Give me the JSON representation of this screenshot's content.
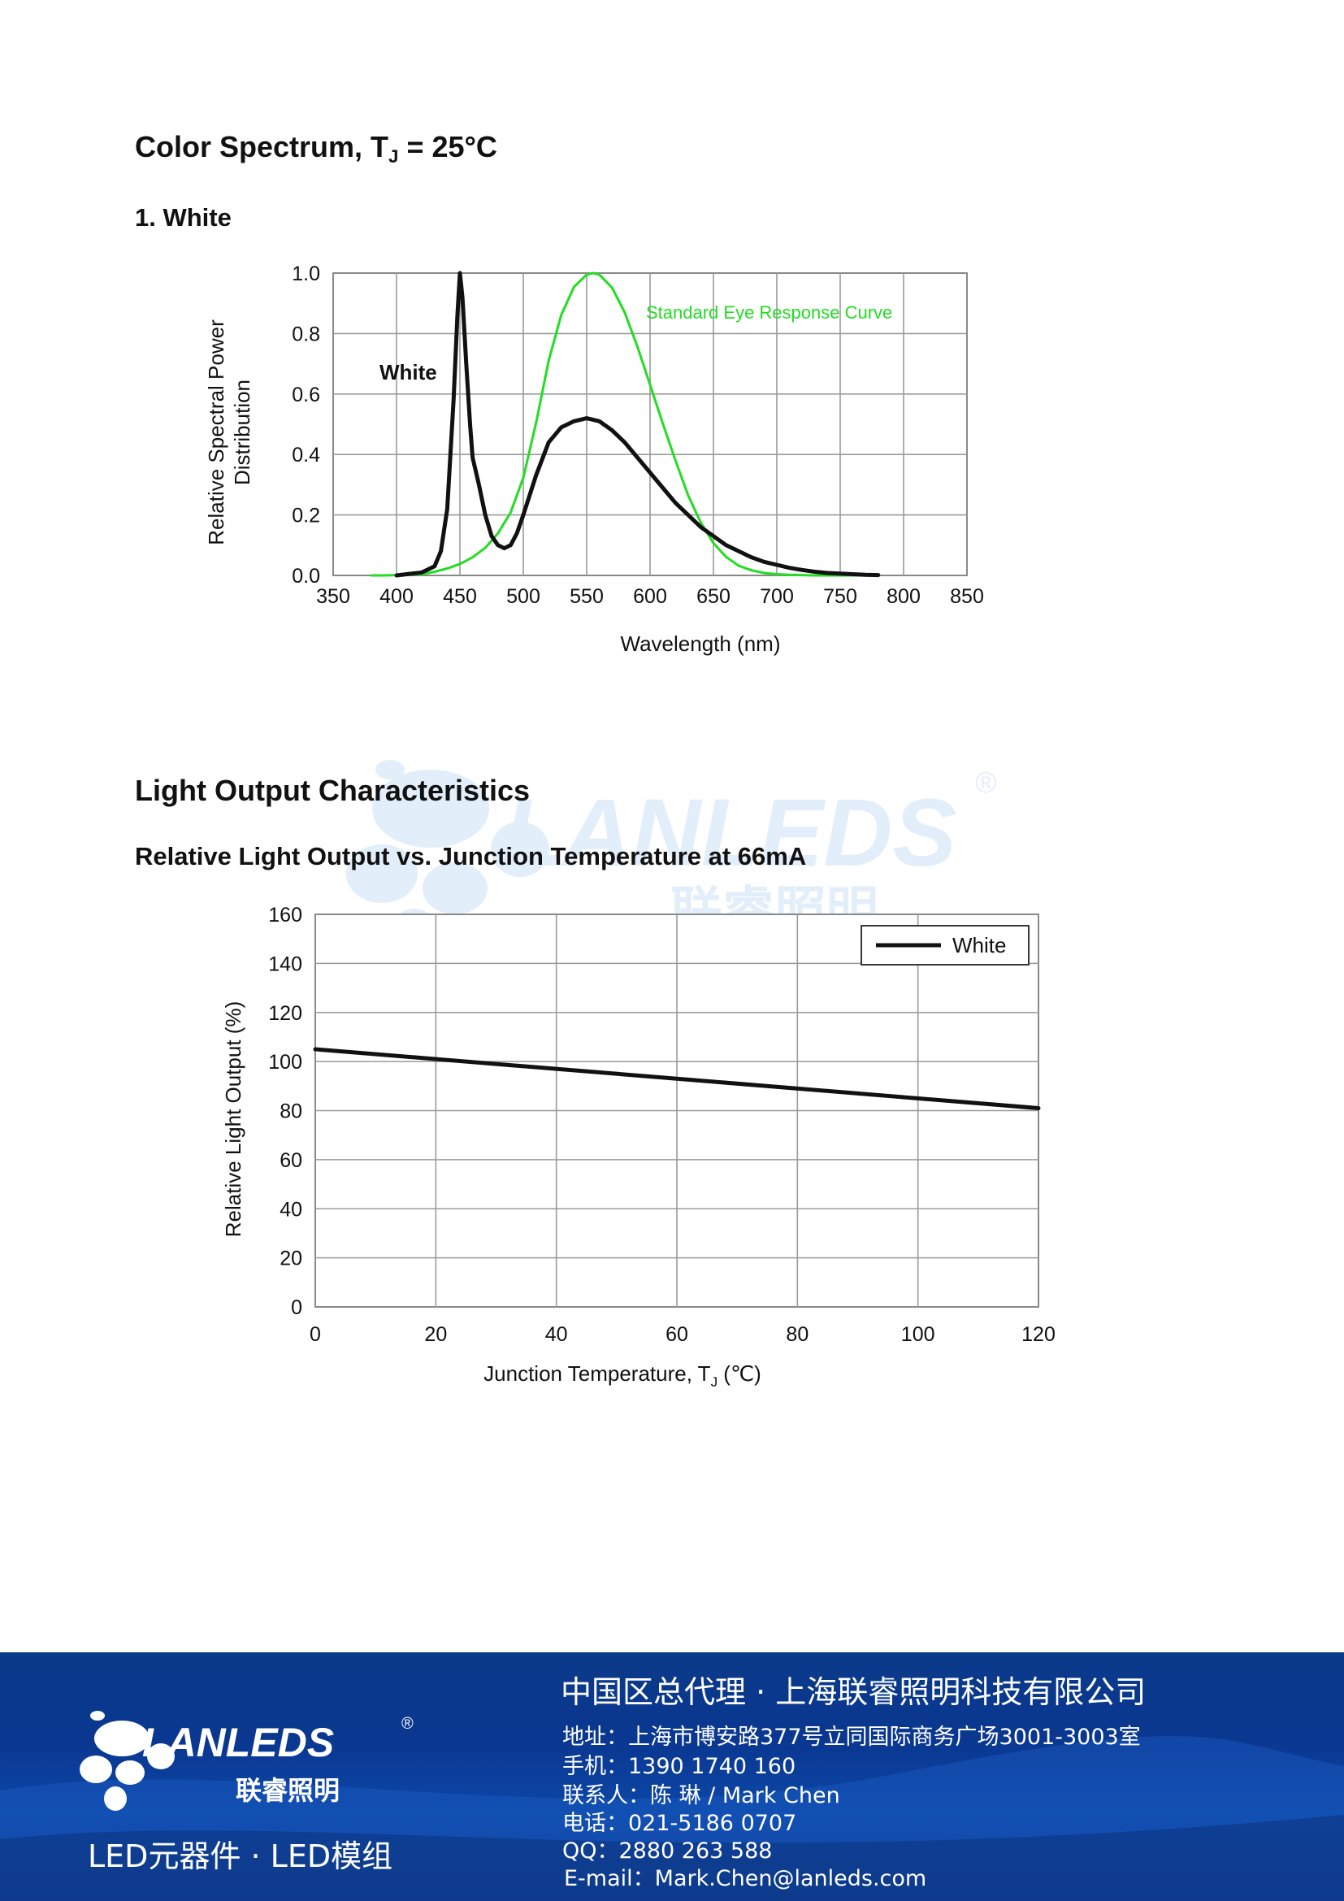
{
  "section1": {
    "title": "Color Spectrum, T",
    "title_sub": "J",
    "title_rest": " = 25°C",
    "subtitle": "1. White"
  },
  "chart_data": [
    {
      "type": "line",
      "ylabel_line1": "Relative Spectral Power",
      "ylabel_line2": "Distribution",
      "xlabel": "Wavelength (nm)",
      "xlim": [
        350,
        850
      ],
      "ylim": [
        0,
        1.0
      ],
      "x_ticks": [
        "350",
        "400",
        "450",
        "500",
        "550",
        "600",
        "650",
        "700",
        "750",
        "800",
        "850"
      ],
      "y_ticks": [
        "0.0",
        "0.2",
        "0.4",
        "0.6",
        "0.8",
        "1.0"
      ],
      "grid": true,
      "annotations": [
        {
          "text": "White",
          "color": "#111111"
        },
        {
          "text": "Standard Eye Response Curve",
          "color": "#22dd22"
        }
      ],
      "series": [
        {
          "name": "White",
          "color": "#111111",
          "x": [
            400,
            410,
            420,
            430,
            435,
            440,
            445,
            448,
            450,
            452,
            455,
            458,
            460,
            465,
            470,
            475,
            480,
            485,
            490,
            495,
            500,
            510,
            520,
            530,
            540,
            550,
            560,
            570,
            580,
            590,
            600,
            610,
            620,
            630,
            640,
            650,
            660,
            670,
            680,
            690,
            700,
            710,
            720,
            730,
            740,
            750,
            760,
            770,
            780
          ],
          "y": [
            0.0,
            0.005,
            0.01,
            0.03,
            0.08,
            0.22,
            0.58,
            0.86,
            1.0,
            0.92,
            0.7,
            0.5,
            0.39,
            0.3,
            0.2,
            0.13,
            0.1,
            0.09,
            0.1,
            0.14,
            0.2,
            0.33,
            0.44,
            0.49,
            0.51,
            0.52,
            0.51,
            0.48,
            0.44,
            0.39,
            0.34,
            0.29,
            0.24,
            0.2,
            0.16,
            0.13,
            0.1,
            0.08,
            0.06,
            0.045,
            0.035,
            0.025,
            0.018,
            0.012,
            0.008,
            0.006,
            0.004,
            0.002,
            0.001
          ]
        },
        {
          "name": "Standard Eye Response Curve",
          "color": "#22dd22",
          "x": [
            380,
            390,
            400,
            410,
            420,
            430,
            440,
            450,
            460,
            470,
            480,
            490,
            500,
            510,
            520,
            530,
            540,
            550,
            555,
            560,
            570,
            580,
            590,
            600,
            610,
            620,
            630,
            640,
            650,
            660,
            670,
            680,
            690,
            700,
            710,
            720,
            730,
            740,
            750,
            760,
            770,
            780
          ],
          "y": [
            0.0,
            0.0,
            0.001,
            0.002,
            0.004,
            0.012,
            0.023,
            0.038,
            0.06,
            0.091,
            0.139,
            0.208,
            0.323,
            0.503,
            0.71,
            0.862,
            0.954,
            0.995,
            1.0,
            0.995,
            0.952,
            0.87,
            0.757,
            0.631,
            0.503,
            0.381,
            0.265,
            0.175,
            0.107,
            0.061,
            0.032,
            0.017,
            0.008,
            0.004,
            0.002,
            0.001,
            0.0,
            0.0,
            0.0,
            0.0,
            0.0,
            0.0
          ]
        }
      ]
    },
    {
      "type": "line",
      "title": "Relative Light Output vs. Junction Temperature at 66mA",
      "ylabel": "Relative Light Output (%)",
      "xlabel": "Junction Temperature, T",
      "xlabel_sub": "J",
      "xlabel_rest": " (℃)",
      "xlim": [
        0,
        120
      ],
      "ylim": [
        0,
        160
      ],
      "x_ticks": [
        "0",
        "20",
        "40",
        "60",
        "80",
        "100",
        "120"
      ],
      "y_ticks": [
        "0",
        "20",
        "40",
        "60",
        "80",
        "100",
        "120",
        "140",
        "160"
      ],
      "grid": true,
      "legend": "top-right",
      "series": [
        {
          "name": "White",
          "color": "#111111",
          "x": [
            0,
            120
          ],
          "y": [
            105,
            81
          ]
        }
      ]
    }
  ],
  "section2": {
    "title": "Light Output Characteristics"
  },
  "watermark": {
    "brand": "LANLEDS",
    "brand_cn": "联睿照明",
    "reg": "®"
  },
  "footer": {
    "logo_text": "LANLEDS",
    "logo_cn": "联睿照明",
    "reg": "®",
    "tagline": "LED元器件 · LED模组",
    "company": "中国区总代理 · 上海联睿照明科技有限公司",
    "address": "地址：上海市博安路377号立同国际商务广场3001-3003室",
    "mobile": "手机：1390 1740 160",
    "contact": "联系人：陈 琳 / Mark Chen",
    "phone": "电话：021-5186 0707",
    "qq": "QQ：2880 263 588",
    "email": "E-mail：Mark.Chen@lanleds.com"
  }
}
